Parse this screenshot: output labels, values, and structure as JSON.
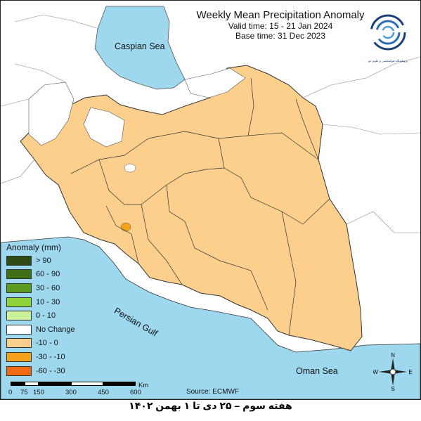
{
  "title": "Weekly Mean Precipitation Anomaly",
  "valid_time": "Valid time: 15 - 21  Jan 2024",
  "base_time": "Base time: 31 Dec 2023",
  "logo_text": "پژوهشگاه هواشناسی و علوم جو",
  "seas": {
    "caspian": "Caspian Sea",
    "persian_gulf": "Persian Gulf",
    "oman": "Oman Sea"
  },
  "legend": {
    "title": "Anomaly (mm)",
    "items": [
      {
        "label": "> 90",
        "color": "#2d4b12"
      },
      {
        "label": "60 - 90",
        "color": "#3f6e14"
      },
      {
        "label": "30 - 60",
        "color": "#5b9a1f"
      },
      {
        "label": "10 - 30",
        "color": "#8ed13a"
      },
      {
        "label": "0 - 10",
        "color": "#cdf09a"
      },
      {
        "label": "No Change",
        "color": "#ffffff"
      },
      {
        "label": "-10 - 0",
        "color": "#fcd08c"
      },
      {
        "label": "-30 - -10",
        "color": "#f5a21a"
      },
      {
        "label": "-60 - -30",
        "color": "#f06a14"
      }
    ]
  },
  "scale": {
    "ticks": [
      "0",
      "75",
      "150",
      "300",
      "450",
      "600"
    ],
    "unit": "Km"
  },
  "source": "Source: ECMWF",
  "compass": {
    "n": "N",
    "s": "S",
    "e": "E",
    "w": "W"
  },
  "footer": "هفته سوم – ۲۵ دی تا ۱ بهمن ۱۴۰۲",
  "colors": {
    "water": "#9dd8ef",
    "land_anomaly": "#fcd08c",
    "no_change": "#ffffff",
    "strong_dry": "#f5a21a",
    "border": "#333333"
  }
}
